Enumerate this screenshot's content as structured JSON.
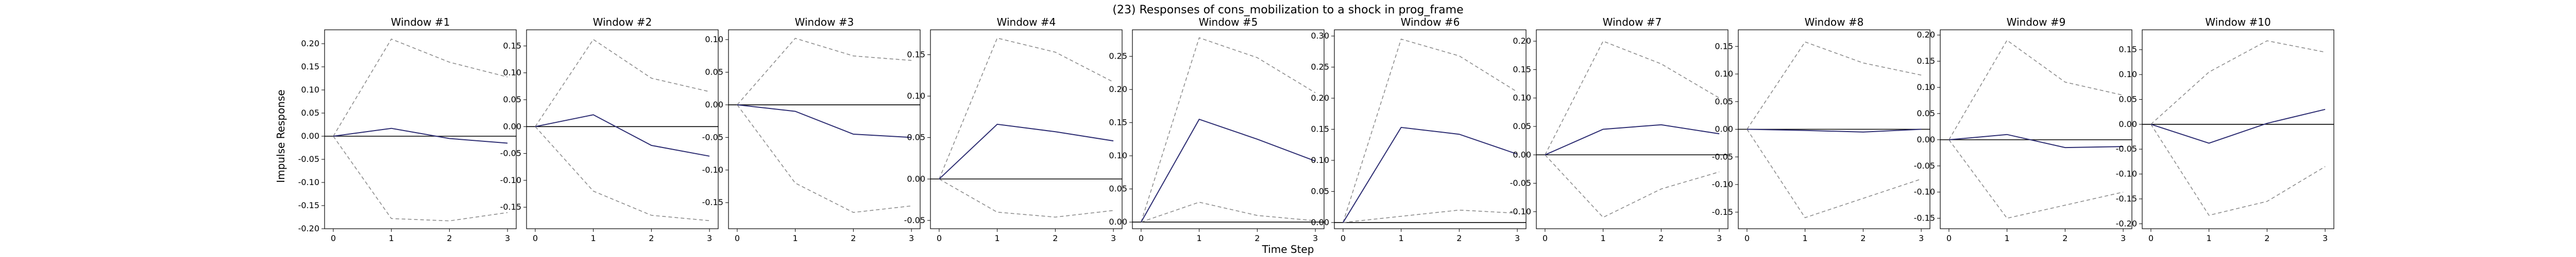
{
  "chart_data": {
    "type": "line",
    "title": "(23) Responses of cons_mobilization to a shock in prog_frame",
    "xlabel": "Time Step",
    "ylabel": "Impulse Response",
    "colors": {
      "irf": "#2e2e73",
      "band": "#8c8c8c",
      "zero": "#000000"
    },
    "panels": [
      {
        "title": "Window #1",
        "x": [
          0,
          1,
          2,
          3
        ],
        "ylim": [
          -0.2,
          0.23
        ],
        "yticks": [
          -0.2,
          -0.15,
          -0.1,
          -0.05,
          0.0,
          0.05,
          0.1,
          0.15,
          0.2
        ],
        "irf": [
          0,
          0.017,
          -0.005,
          -0.015
        ],
        "lower": [
          0,
          -0.178,
          -0.183,
          -0.165
        ],
        "upper": [
          0,
          0.21,
          0.16,
          0.128
        ]
      },
      {
        "title": "Window #2",
        "x": [
          0,
          1,
          2,
          3
        ],
        "ylim": [
          -0.19,
          0.18
        ],
        "yticks": [
          -0.15,
          -0.1,
          -0.05,
          0.0,
          0.05,
          0.1,
          0.15
        ],
        "irf": [
          0,
          0.022,
          -0.035,
          -0.055
        ],
        "lower": [
          0,
          -0.12,
          -0.165,
          -0.175
        ],
        "upper": [
          0,
          0.162,
          0.09,
          0.065
        ]
      },
      {
        "title": "Window #3",
        "x": [
          0,
          1,
          2,
          3
        ],
        "ylim": [
          -0.19,
          0.115
        ],
        "yticks": [
          -0.15,
          -0.1,
          -0.05,
          0.0,
          0.05,
          0.1
        ],
        "irf": [
          0,
          -0.01,
          -0.045,
          -0.05
        ],
        "lower": [
          0,
          -0.12,
          -0.165,
          -0.155
        ],
        "upper": [
          0,
          0.102,
          0.075,
          0.068
        ]
      },
      {
        "title": "Window #4",
        "x": [
          0,
          1,
          2,
          3
        ],
        "ylim": [
          -0.06,
          0.18
        ],
        "yticks": [
          -0.05,
          0.0,
          0.05,
          0.1,
          0.15
        ],
        "irf": [
          0,
          0.066,
          0.057,
          0.046
        ],
        "lower": [
          0,
          -0.04,
          -0.046,
          -0.038
        ],
        "upper": [
          0,
          0.17,
          0.153,
          0.117
        ]
      },
      {
        "title": "Window #5",
        "x": [
          0,
          1,
          2,
          3
        ],
        "ylim": [
          -0.01,
          0.29
        ],
        "yticks": [
          0.0,
          0.05,
          0.1,
          0.15,
          0.2,
          0.25
        ],
        "irf": [
          0,
          0.155,
          0.125,
          0.092
        ],
        "lower": [
          0,
          0.03,
          0.01,
          0.002
        ],
        "upper": [
          0,
          0.278,
          0.248,
          0.195
        ]
      },
      {
        "title": "Window #6",
        "x": [
          0,
          1,
          2,
          3
        ],
        "ylim": [
          -0.01,
          0.31
        ],
        "yticks": [
          0.0,
          0.05,
          0.1,
          0.15,
          0.2,
          0.25,
          0.3
        ],
        "irf": [
          0,
          0.153,
          0.142,
          0.11
        ],
        "lower": [
          0,
          0.01,
          0.02,
          0.015
        ],
        "upper": [
          0,
          0.295,
          0.268,
          0.21
        ]
      },
      {
        "title": "Window #7",
        "x": [
          0,
          1,
          2,
          3
        ],
        "ylim": [
          -0.13,
          0.22
        ],
        "yticks": [
          -0.1,
          -0.05,
          0.0,
          0.05,
          0.1,
          0.15,
          0.2
        ],
        "irf": [
          0,
          0.045,
          0.053,
          0.037
        ],
        "lower": [
          0,
          -0.11,
          -0.06,
          -0.03
        ],
        "upper": [
          0,
          0.2,
          0.16,
          0.1
        ]
      },
      {
        "title": "Window #8",
        "x": [
          0,
          1,
          2,
          3
        ],
        "ylim": [
          -0.18,
          0.18
        ],
        "yticks": [
          -0.15,
          -0.1,
          -0.05,
          0.0,
          0.05,
          0.1,
          0.15
        ],
        "irf": [
          0,
          -0.002,
          -0.005,
          0.0
        ],
        "lower": [
          0,
          -0.16,
          -0.125,
          -0.09
        ],
        "upper": [
          0,
          0.158,
          0.12,
          0.098
        ]
      },
      {
        "title": "Window #9",
        "x": [
          0,
          1,
          2,
          3
        ],
        "ylim": [
          -0.17,
          0.21
        ],
        "yticks": [
          -0.15,
          -0.1,
          -0.05,
          0.0,
          0.05,
          0.1,
          0.15,
          0.2
        ],
        "irf": [
          0,
          0.01,
          -0.015,
          -0.013
        ],
        "lower": [
          0,
          -0.15,
          -0.125,
          -0.1
        ],
        "upper": [
          0,
          0.19,
          0.11,
          0.085
        ]
      },
      {
        "title": "Window #10",
        "x": [
          0,
          1,
          2,
          3
        ],
        "ylim": [
          -0.21,
          0.19
        ],
        "yticks": [
          -0.2,
          -0.15,
          -0.1,
          -0.05,
          0.0,
          0.05,
          0.1,
          0.15
        ],
        "irf": [
          0,
          -0.038,
          0.002,
          0.03
        ],
        "lower": [
          0,
          -0.183,
          -0.155,
          -0.085
        ],
        "upper": [
          0,
          0.105,
          0.168,
          0.145
        ]
      }
    ]
  }
}
